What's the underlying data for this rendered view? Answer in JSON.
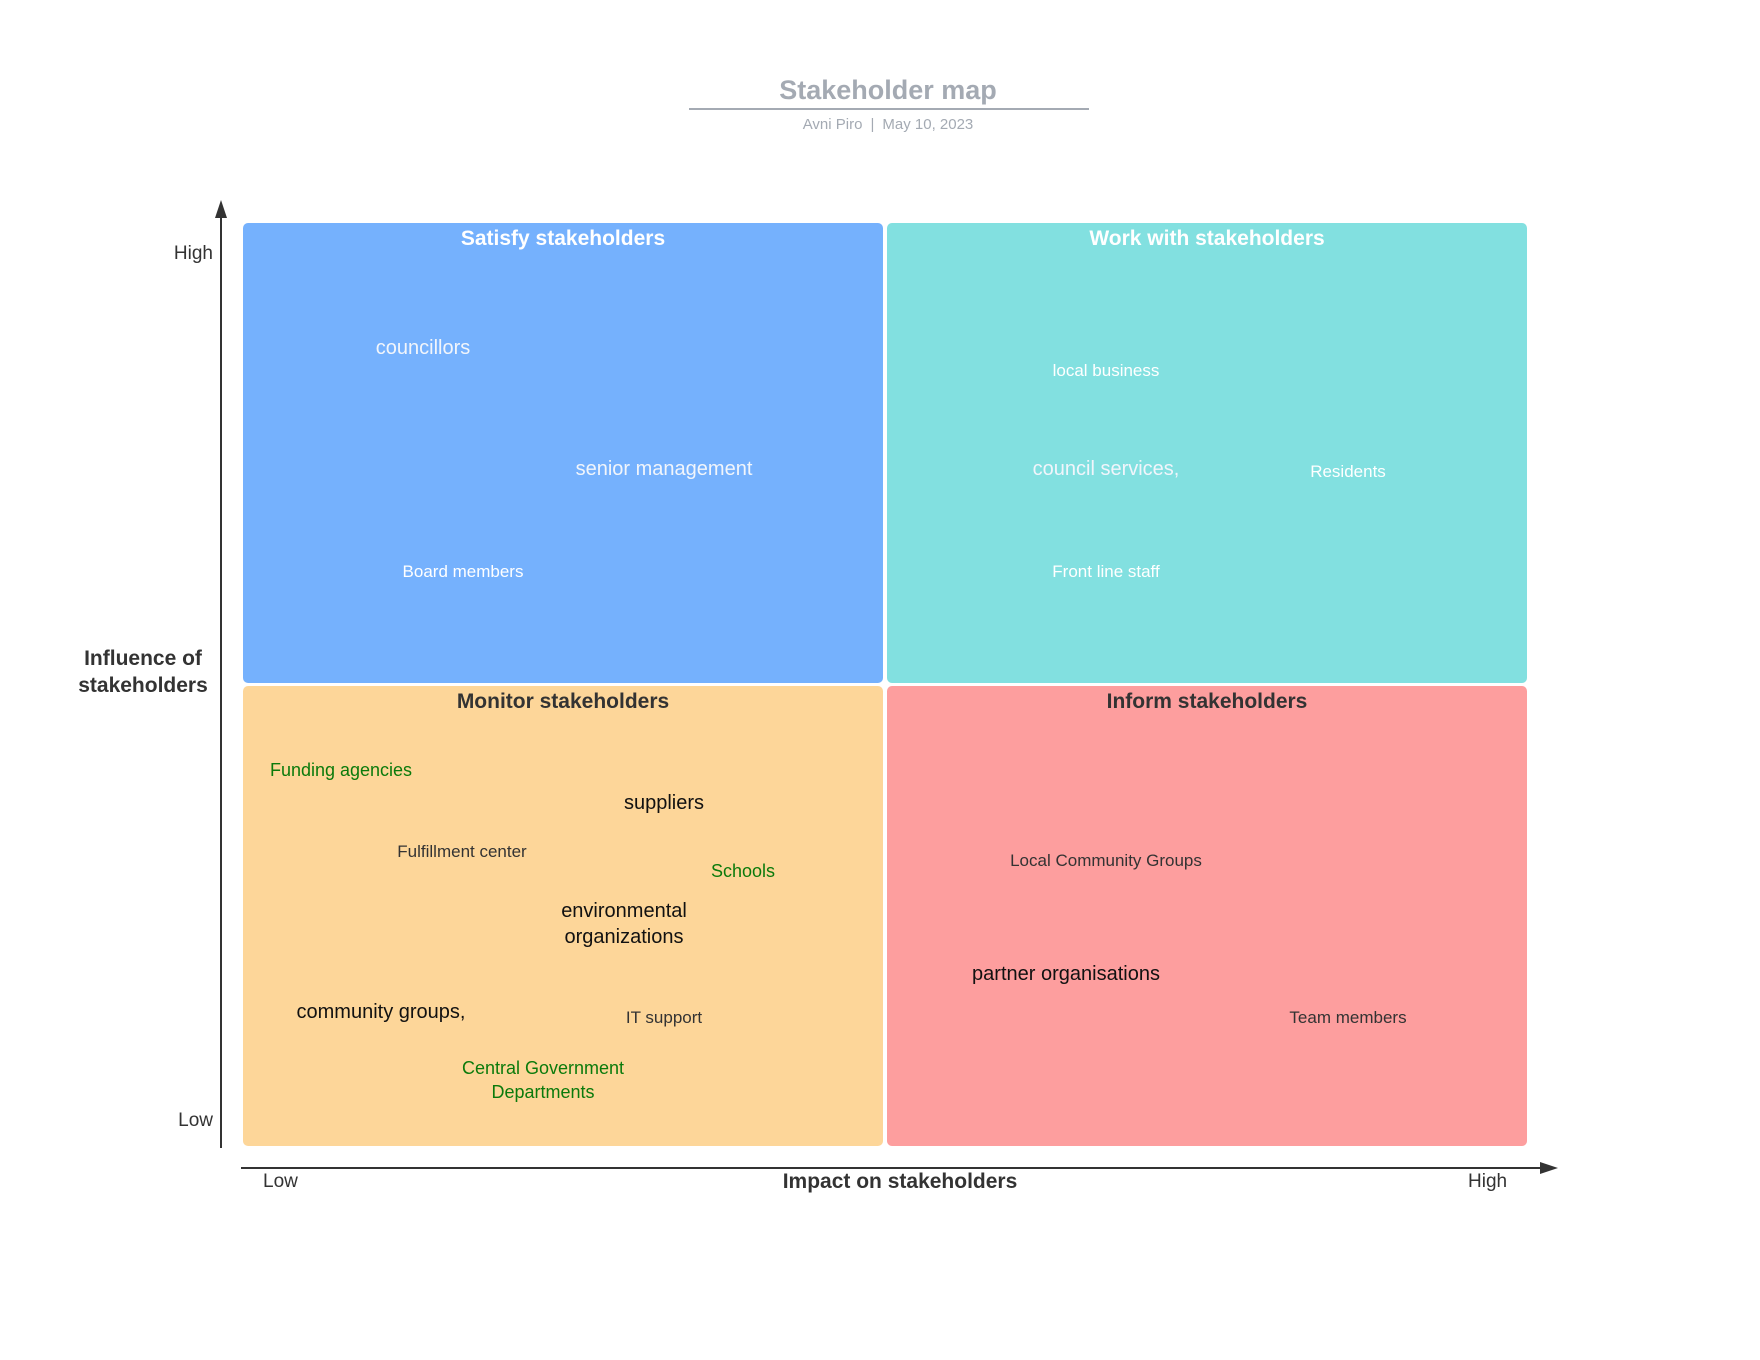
{
  "header": {
    "title": "Stakeholder map",
    "author": "Avni Piro",
    "separator": "|",
    "date": "May 10, 2023"
  },
  "axes": {
    "y_label": "Influence of stakeholders",
    "x_label": "Impact on stakeholders",
    "y_high": "High",
    "y_low": "Low",
    "x_low": "Low",
    "x_high": "High"
  },
  "quadrants": {
    "satisfy": {
      "title": "Satisfy stakeholders",
      "color": "#75b1fd",
      "items": [
        "councillors",
        "senior management",
        "Board members"
      ]
    },
    "work_with": {
      "title": "Work with stakeholders",
      "color": "#82e0e0",
      "items": [
        "local business",
        "council services,",
        "Residents",
        "Front line staff"
      ]
    },
    "monitor": {
      "title": "Monitor stakeholders",
      "color": "#fdd699",
      "items": [
        "Funding agencies",
        "suppliers",
        "Fulfillment center",
        "Schools",
        "environmental organizations",
        "community groups,",
        "IT support",
        "Central Government Departments"
      ]
    },
    "inform": {
      "title": "Inform stakeholders",
      "color": "#fd9e9e",
      "items": [
        "Local Community Groups",
        "partner organisations",
        "Team members"
      ]
    }
  }
}
